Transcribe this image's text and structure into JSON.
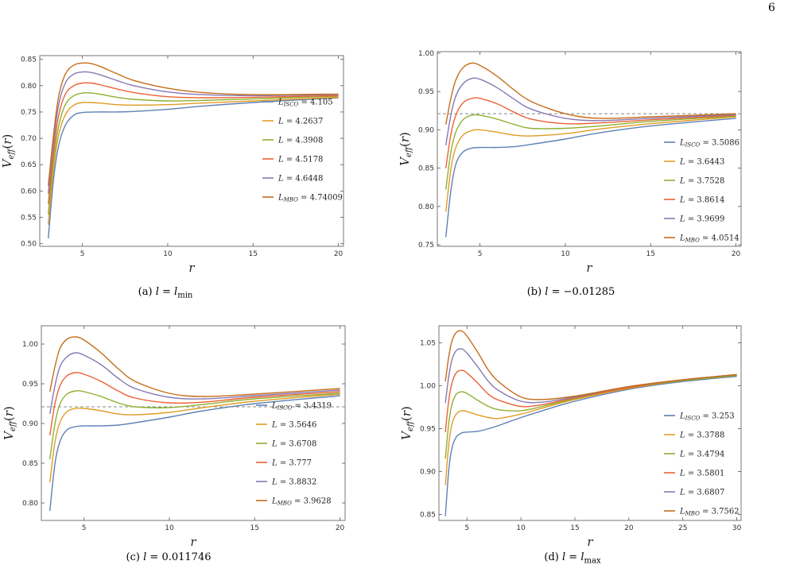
{
  "page_number": "6",
  "colors": [
    "#5e81b5",
    "#e19c24",
    "#8fb032",
    "#eb6235",
    "#8778b3",
    "#c56e1a"
  ],
  "captions": [
    {
      "label": "(a)",
      "math": "l",
      "eq": "=",
      "value": "l",
      "sub": "min"
    },
    {
      "label": "(b)",
      "math": "l",
      "eq": "=",
      "value": "−0.01285",
      "sub": ""
    },
    {
      "label": "(c)",
      "math": "l",
      "eq": "=",
      "value": "0.011746",
      "sub": ""
    },
    {
      "label": "(d)",
      "math": "l",
      "eq": "=",
      "value": "l",
      "sub": "max"
    }
  ],
  "chart_data": [
    {
      "type": "line",
      "xlabel": "r",
      "ylabel": "V_eff(r)",
      "xlim": [
        2.5,
        20.3
      ],
      "ylim": [
        0.495,
        0.857
      ],
      "xticks": [
        5,
        10,
        15,
        20
      ],
      "yticks": [
        0.5,
        0.55,
        0.6,
        0.65,
        0.7,
        0.75,
        0.8,
        0.85
      ],
      "legend_position": "center-right",
      "dashed_line": null,
      "series": [
        {
          "name": "L_ISCO = 4.105",
          "x": [
            3,
            3.3,
            3.6,
            4,
            4.5,
            5,
            6,
            7,
            8,
            10,
            12,
            15,
            20
          ],
          "y": [
            0.51,
            0.62,
            0.685,
            0.725,
            0.744,
            0.749,
            0.75,
            0.75,
            0.751,
            0.755,
            0.761,
            0.768,
            0.777
          ]
        },
        {
          "name": "L = 4.2637",
          "x": [
            3,
            3.3,
            3.6,
            4,
            4.5,
            5,
            5.5,
            6,
            7,
            8,
            10,
            12,
            15,
            20
          ],
          "y": [
            0.536,
            0.64,
            0.705,
            0.745,
            0.763,
            0.768,
            0.768,
            0.767,
            0.764,
            0.763,
            0.764,
            0.767,
            0.771,
            0.778
          ]
        },
        {
          "name": "L = 4.3908",
          "x": [
            3,
            3.3,
            3.6,
            4,
            4.5,
            5,
            5.5,
            6,
            7,
            8,
            10,
            12,
            15,
            20
          ],
          "y": [
            0.555,
            0.655,
            0.722,
            0.764,
            0.781,
            0.786,
            0.786,
            0.784,
            0.778,
            0.774,
            0.771,
            0.772,
            0.775,
            0.78
          ]
        },
        {
          "name": "L = 4.5178",
          "x": [
            3,
            3.3,
            3.6,
            4,
            4.5,
            5,
            5.5,
            6,
            7,
            8,
            10,
            12,
            15,
            20
          ],
          "y": [
            0.575,
            0.672,
            0.742,
            0.784,
            0.8,
            0.805,
            0.805,
            0.802,
            0.794,
            0.787,
            0.779,
            0.777,
            0.778,
            0.781
          ]
        },
        {
          "name": "L = 4.6448",
          "x": [
            3,
            3.3,
            3.6,
            4,
            4.5,
            5,
            5.5,
            6,
            7,
            8,
            10,
            12,
            15,
            20
          ],
          "y": [
            0.595,
            0.69,
            0.762,
            0.805,
            0.822,
            0.826,
            0.825,
            0.821,
            0.81,
            0.8,
            0.788,
            0.783,
            0.781,
            0.783
          ]
        },
        {
          "name": "L_MBO = 4.74009",
          "x": [
            3,
            3.3,
            3.6,
            4,
            4.5,
            5,
            5.5,
            6,
            7,
            8,
            10,
            12,
            15,
            20
          ],
          "y": [
            0.61,
            0.705,
            0.778,
            0.822,
            0.839,
            0.843,
            0.842,
            0.837,
            0.823,
            0.81,
            0.795,
            0.787,
            0.783,
            0.784
          ]
        }
      ]
    },
    {
      "type": "line",
      "xlabel": "r",
      "ylabel": "V_eff(r)",
      "xlim": [
        2.5,
        20.3
      ],
      "ylim": [
        0.748,
        1.002
      ],
      "xticks": [
        5,
        10,
        15,
        20
      ],
      "yticks": [
        0.75,
        0.8,
        0.85,
        0.9,
        0.95,
        1.0
      ],
      "legend_position": "bottom-right",
      "dashed_line": 0.921,
      "series": [
        {
          "name": "L_ISCO = 3.5086",
          "x": [
            3,
            3.3,
            3.6,
            4,
            4.5,
            5,
            6,
            7,
            8,
            10,
            12,
            15,
            20
          ],
          "y": [
            0.76,
            0.822,
            0.856,
            0.871,
            0.876,
            0.877,
            0.877,
            0.878,
            0.881,
            0.888,
            0.896,
            0.905,
            0.915
          ]
        },
        {
          "name": "L = 3.6443",
          "x": [
            3,
            3.3,
            3.6,
            4,
            4.5,
            5,
            6,
            7,
            8,
            10,
            12,
            15,
            20
          ],
          "y": [
            0.793,
            0.85,
            0.878,
            0.893,
            0.899,
            0.9,
            0.897,
            0.893,
            0.892,
            0.895,
            0.901,
            0.908,
            0.917
          ]
        },
        {
          "name": "L = 3.7528",
          "x": [
            3,
            3.3,
            3.6,
            4,
            4.5,
            5,
            6,
            7,
            8,
            10,
            12,
            15,
            20
          ],
          "y": [
            0.822,
            0.872,
            0.898,
            0.913,
            0.919,
            0.919,
            0.914,
            0.907,
            0.902,
            0.902,
            0.905,
            0.911,
            0.918
          ]
        },
        {
          "name": "L = 3.8614",
          "x": [
            3,
            3.3,
            3.6,
            4,
            4.5,
            5,
            6,
            7,
            8,
            10,
            12,
            15,
            20
          ],
          "y": [
            0.85,
            0.895,
            0.92,
            0.935,
            0.941,
            0.941,
            0.934,
            0.923,
            0.914,
            0.908,
            0.909,
            0.913,
            0.919
          ]
        },
        {
          "name": "L = 3.9699",
          "x": [
            3,
            3.3,
            3.6,
            4,
            4.5,
            5,
            6,
            7,
            8,
            10,
            12,
            15,
            20
          ],
          "y": [
            0.88,
            0.92,
            0.945,
            0.96,
            0.967,
            0.966,
            0.955,
            0.94,
            0.927,
            0.915,
            0.912,
            0.915,
            0.92
          ]
        },
        {
          "name": "L_MBO = 4.0514",
          "x": [
            3,
            3.3,
            3.6,
            4,
            4.5,
            5,
            6,
            7,
            8,
            10,
            12,
            15,
            20
          ],
          "y": [
            0.907,
            0.942,
            0.966,
            0.981,
            0.987,
            0.984,
            0.97,
            0.952,
            0.937,
            0.921,
            0.915,
            0.917,
            0.921
          ]
        }
      ]
    },
    {
      "type": "line",
      "xlabel": "r",
      "ylabel": "V_eff(r)",
      "xlim": [
        2.5,
        20.3
      ],
      "ylim": [
        0.778,
        1.023
      ],
      "xticks": [
        5,
        10,
        15,
        20
      ],
      "yticks": [
        0.8,
        0.85,
        0.9,
        0.95,
        1.0
      ],
      "legend_position": "bottom-right",
      "dashed_line": 0.921,
      "series": [
        {
          "name": "L_ISCO = 3.4319",
          "x": [
            3,
            3.3,
            3.6,
            4,
            4.5,
            5,
            6,
            7,
            8,
            10,
            12,
            15,
            20
          ],
          "y": [
            0.79,
            0.85,
            0.878,
            0.892,
            0.896,
            0.897,
            0.897,
            0.898,
            0.901,
            0.908,
            0.916,
            0.925,
            0.935
          ]
        },
        {
          "name": "L = 3.5646",
          "x": [
            3,
            3.3,
            3.6,
            4,
            4.5,
            5,
            6,
            7,
            8,
            10,
            12,
            15,
            20
          ],
          "y": [
            0.826,
            0.877,
            0.902,
            0.915,
            0.919,
            0.919,
            0.916,
            0.912,
            0.911,
            0.914,
            0.92,
            0.928,
            0.937
          ]
        },
        {
          "name": "L = 3.6708",
          "x": [
            3,
            3.3,
            3.6,
            4,
            4.5,
            5,
            6,
            7,
            8,
            10,
            12,
            15,
            20
          ],
          "y": [
            0.855,
            0.9,
            0.925,
            0.937,
            0.941,
            0.94,
            0.934,
            0.926,
            0.921,
            0.92,
            0.924,
            0.931,
            0.938
          ]
        },
        {
          "name": "L = 3.777",
          "x": [
            3,
            3.3,
            3.6,
            4,
            4.5,
            5,
            6,
            7,
            8,
            10,
            12,
            15,
            20
          ],
          "y": [
            0.885,
            0.925,
            0.948,
            0.96,
            0.964,
            0.962,
            0.953,
            0.941,
            0.932,
            0.926,
            0.927,
            0.933,
            0.94
          ]
        },
        {
          "name": "L = 3.8832",
          "x": [
            3,
            3.3,
            3.6,
            4,
            4.5,
            5,
            6,
            7,
            8,
            10,
            12,
            15,
            20
          ],
          "y": [
            0.912,
            0.948,
            0.972,
            0.984,
            0.989,
            0.986,
            0.974,
            0.957,
            0.944,
            0.933,
            0.931,
            0.935,
            0.942
          ]
        },
        {
          "name": "L_MBO = 3.9628",
          "x": [
            3,
            3.3,
            3.6,
            4,
            4.5,
            5,
            6,
            7,
            8,
            10,
            12,
            15,
            20
          ],
          "y": [
            0.94,
            0.972,
            0.995,
            1.006,
            1.009,
            1.005,
            0.989,
            0.969,
            0.953,
            0.938,
            0.934,
            0.937,
            0.944
          ]
        }
      ]
    },
    {
      "type": "line",
      "xlabel": "r",
      "ylabel": "V_eff(r)",
      "xlim": [
        2.4,
        30.4
      ],
      "ylim": [
        0.843,
        1.07
      ],
      "xticks": [
        5,
        10,
        15,
        20,
        25,
        30
      ],
      "yticks": [
        0.85,
        0.9,
        0.95,
        1.0,
        1.05
      ],
      "legend_position": "bottom-right",
      "dashed_line": null,
      "series": [
        {
          "name": "L_ISCO = 3.253",
          "x": [
            3,
            3.3,
            3.6,
            4,
            4.5,
            5,
            6,
            7,
            8,
            10,
            12,
            15,
            20,
            25,
            30
          ],
          "y": [
            0.848,
            0.9,
            0.927,
            0.94,
            0.945,
            0.946,
            0.947,
            0.95,
            0.954,
            0.963,
            0.971,
            0.982,
            0.996,
            1.005,
            1.011
          ]
        },
        {
          "name": "L = 3.3788",
          "x": [
            3,
            3.3,
            3.6,
            4,
            4.5,
            5,
            6,
            7,
            8,
            10,
            12,
            15,
            20,
            25,
            30
          ],
          "y": [
            0.884,
            0.93,
            0.955,
            0.967,
            0.971,
            0.97,
            0.966,
            0.963,
            0.962,
            0.967,
            0.974,
            0.984,
            0.997,
            1.006,
            1.012
          ]
        },
        {
          "name": "L = 3.4794",
          "x": [
            3,
            3.3,
            3.6,
            4,
            4.5,
            5,
            6,
            7,
            8,
            10,
            12,
            15,
            20,
            25,
            30
          ],
          "y": [
            0.915,
            0.955,
            0.978,
            0.99,
            0.993,
            0.991,
            0.983,
            0.976,
            0.972,
            0.971,
            0.976,
            0.985,
            0.998,
            1.006,
            1.012
          ]
        },
        {
          "name": "L = 3.5801",
          "x": [
            3,
            3.3,
            3.6,
            4,
            4.5,
            5,
            6,
            7,
            8,
            10,
            12,
            15,
            20,
            25,
            30
          ],
          "y": [
            0.946,
            0.982,
            1.003,
            1.015,
            1.018,
            1.015,
            1.003,
            0.99,
            0.983,
            0.976,
            0.978,
            0.986,
            0.998,
            1.007,
            1.013
          ]
        },
        {
          "name": "L = 3.6807",
          "x": [
            3,
            3.3,
            3.6,
            4,
            4.5,
            5,
            6,
            7,
            8,
            10,
            12,
            15,
            20,
            25,
            30
          ],
          "y": [
            0.98,
            1.01,
            1.03,
            1.041,
            1.043,
            1.038,
            1.022,
            1.005,
            0.994,
            0.982,
            0.981,
            0.987,
            0.999,
            1.007,
            1.013
          ]
        },
        {
          "name": "L_MBO = 3.7562",
          "x": [
            3,
            3.3,
            3.6,
            4,
            4.5,
            5,
            6,
            7,
            8,
            10,
            12,
            15,
            20,
            25,
            30
          ],
          "y": [
            1.005,
            1.033,
            1.052,
            1.062,
            1.064,
            1.058,
            1.039,
            1.018,
            1.004,
            0.987,
            0.984,
            0.988,
            0.999,
            1.007,
            1.013
          ]
        }
      ]
    }
  ]
}
